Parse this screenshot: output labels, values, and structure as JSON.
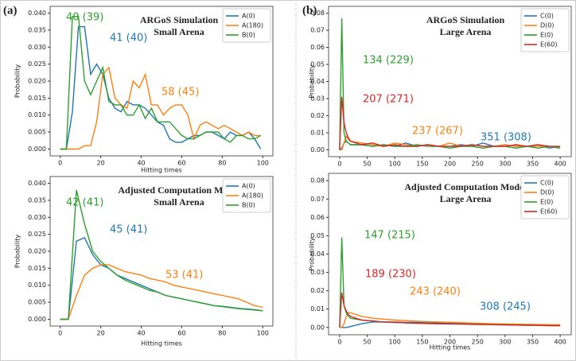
{
  "panel_labels": [
    "(a)",
    "(b)"
  ],
  "chart_data": [
    {
      "type": "line",
      "title": "ARGoS Simulation",
      "subtitle": "Small Arena",
      "xlabel": "Hitting times",
      "ylabel": "Probability",
      "x": [
        0,
        3,
        6,
        9,
        12,
        15,
        18,
        21,
        24,
        27,
        30,
        33,
        36,
        39,
        42,
        45,
        48,
        51,
        54,
        57,
        60,
        63,
        66,
        69,
        72,
        75,
        78,
        81,
        84,
        87,
        90,
        93,
        96,
        99
      ],
      "series": [
        {
          "name": "A(0)",
          "color": "#1f77b4",
          "values": [
            0,
            0,
            0.011,
            0.036,
            0.036,
            0.022,
            0.025,
            0.022,
            0.015,
            0.012,
            0.011,
            0.014,
            0.013,
            0.013,
            0.012,
            0.01,
            0.008,
            0.007,
            0.003,
            0.002,
            0.002,
            0.003,
            0.004,
            0.004,
            0.005,
            0.005,
            0.004,
            0.003,
            0.005,
            0.004,
            0.004,
            0.005,
            0.003,
            0
          ]
        },
        {
          "name": "A(180)",
          "color": "#ff7f0e",
          "values": [
            0,
            0,
            0,
            0,
            0.001,
            0.001,
            0.008,
            0.022,
            0.024,
            0.015,
            0.013,
            0.012,
            0.02,
            0.018,
            0.022,
            0.013,
            0.013,
            0.01,
            0.012,
            0.013,
            0.013,
            0.01,
            0.003,
            0.007,
            0.008,
            0.007,
            0.006,
            0.007,
            0.006,
            0.005,
            0.004,
            0.005,
            0.004,
            0.004
          ]
        },
        {
          "name": "B(0)",
          "color": "#2ca02c",
          "values": [
            0,
            0,
            0.039,
            0.039,
            0.02,
            0.016,
            0.02,
            0.024,
            0.014,
            0.013,
            0.013,
            0.01,
            0.01,
            0.013,
            0.009,
            0.012,
            0.008,
            0.008,
            0.008,
            0.006,
            0.004,
            0.003,
            0.003,
            0.004,
            0.005,
            0.005,
            0.005,
            0.003,
            0.002,
            0.004,
            0.004,
            0.003,
            0.003,
            0.004
          ]
        }
      ],
      "annotations": [
        {
          "text": "40 (39)",
          "color": "#2ca02c"
        },
        {
          "text": "41 (40)",
          "color": "#1f77b4"
        },
        {
          "text": "58 (45)",
          "color": "#ff7f0e"
        }
      ],
      "xlim": [
        -5,
        105
      ],
      "ylim": [
        -0.002,
        0.042
      ],
      "xticks": [
        0,
        20,
        40,
        60,
        80,
        100
      ],
      "yticks": [
        {
          "value": 0,
          "label": "0.000"
        },
        {
          "value": 0.005,
          "label": "0.005"
        },
        {
          "value": 0.01,
          "label": "0.010"
        },
        {
          "value": 0.015,
          "label": "0.015"
        },
        {
          "value": 0.02,
          "label": "0.020"
        },
        {
          "value": 0.025,
          "label": "0.025"
        },
        {
          "value": 0.03,
          "label": "0.030"
        },
        {
          "value": 0.035,
          "label": "0.035"
        },
        {
          "value": 0.04,
          "label": "0.040"
        }
      ],
      "legend": "upper right"
    },
    {
      "type": "line",
      "title": "Adjusted Computation Model",
      "subtitle": "Small Arena",
      "xlabel": "Hitting times",
      "ylabel": "Probability",
      "x": [
        0,
        4,
        8,
        12,
        16,
        20,
        24,
        28,
        32,
        36,
        40,
        44,
        48,
        52,
        56,
        60,
        64,
        68,
        72,
        76,
        80,
        84,
        88,
        92,
        96,
        100
      ],
      "series": [
        {
          "name": "A(0)",
          "color": "#1f77b4",
          "values": [
            0,
            0,
            0.023,
            0.024,
            0.019,
            0.016,
            0.015,
            0.013,
            0.012,
            0.011,
            0.01,
            0.009,
            0.008,
            0.007,
            0.0065,
            0.006,
            0.0055,
            0.005,
            0.0045,
            0.004,
            0.0038,
            0.0035,
            0.0032,
            0.003,
            0.0028,
            0.0025
          ]
        },
        {
          "name": "A(180)",
          "color": "#ff7f0e",
          "values": [
            0,
            0,
            0.007,
            0.013,
            0.015,
            0.016,
            0.016,
            0.015,
            0.014,
            0.0135,
            0.013,
            0.012,
            0.0115,
            0.011,
            0.01,
            0.0095,
            0.009,
            0.0085,
            0.008,
            0.0075,
            0.007,
            0.0065,
            0.006,
            0.005,
            0.004,
            0.0035
          ]
        },
        {
          "name": "B(0)",
          "color": "#2ca02c",
          "values": [
            0,
            0,
            0.038,
            0.028,
            0.02,
            0.017,
            0.015,
            0.013,
            0.0115,
            0.0105,
            0.0095,
            0.0085,
            0.008,
            0.007,
            0.0065,
            0.006,
            0.0055,
            0.005,
            0.0045,
            0.004,
            0.0037,
            0.0034,
            0.0031,
            0.0029,
            0.0027,
            0.0025
          ]
        }
      ],
      "annotations": [
        {
          "text": "42 (41)",
          "color": "#2ca02c"
        },
        {
          "text": "45 (41)",
          "color": "#1f77b4"
        },
        {
          "text": "53 (41)",
          "color": "#ff7f0e"
        }
      ],
      "xlim": [
        -5,
        105
      ],
      "ylim": [
        -0.002,
        0.042
      ],
      "xticks": [
        0,
        20,
        40,
        60,
        80,
        100
      ],
      "yticks": [
        {
          "value": 0,
          "label": "0.000"
        },
        {
          "value": 0.005,
          "label": "0.005"
        },
        {
          "value": 0.01,
          "label": "0.010"
        },
        {
          "value": 0.015,
          "label": "0.015"
        },
        {
          "value": 0.02,
          "label": "0.020"
        },
        {
          "value": 0.025,
          "label": "0.025"
        },
        {
          "value": 0.03,
          "label": "0.030"
        },
        {
          "value": 0.035,
          "label": "0.035"
        },
        {
          "value": 0.04,
          "label": "0.040"
        }
      ],
      "legend": "upper right"
    },
    {
      "type": "line",
      "title": "ARGoS Simulation",
      "subtitle": "Large Arena",
      "ylabel": "Probability",
      "x": [
        0,
        4,
        8,
        12,
        16,
        20,
        40,
        60,
        80,
        100,
        120,
        140,
        160,
        180,
        200,
        220,
        240,
        260,
        280,
        300,
        320,
        340,
        360,
        380,
        400
      ],
      "series": [
        {
          "name": "C(0)",
          "color": "#1f77b4",
          "values": [
            0,
            0.001,
            0.004,
            0.005,
            0.004,
            0.003,
            0.003,
            0.002,
            0.003,
            0.002,
            0.004,
            0.002,
            0.003,
            0.002,
            0.002,
            0.003,
            0.002,
            0.004,
            0.002,
            0.003,
            0.002,
            0.002,
            0.003,
            0.001,
            0.002
          ]
        },
        {
          "name": "D(0)",
          "color": "#ff7f0e",
          "values": [
            0,
            0,
            0.004,
            0.008,
            0.006,
            0.005,
            0.004,
            0.003,
            0.002,
            0.004,
            0.003,
            0.002,
            0.003,
            0.002,
            0.004,
            0.002,
            0.003,
            0.002,
            0.002,
            0.003,
            0.002,
            0.002,
            0.002,
            0.002,
            0.001
          ]
        },
        {
          "name": "E(0)",
          "color": "#2ca02c",
          "values": [
            0,
            0.077,
            0.01,
            0.005,
            0.004,
            0.003,
            0.003,
            0.002,
            0.003,
            0.002,
            0.002,
            0.003,
            0.002,
            0.002,
            0.001,
            0.002,
            0.002,
            0.001,
            0.002,
            0.002,
            0.001,
            0.002,
            0.001,
            0.002,
            0.001
          ]
        },
        {
          "name": "E(60)",
          "color": "#d62728",
          "values": [
            0,
            0.031,
            0.016,
            0.01,
            0.007,
            0.005,
            0.003,
            0.004,
            0.002,
            0.003,
            0.002,
            0.002,
            0.003,
            0.002,
            0.002,
            0.002,
            0.003,
            0.002,
            0.002,
            0.002,
            0.003,
            0.002,
            0.003,
            0.002,
            0.002
          ]
        }
      ],
      "annotations": [
        {
          "text": "134 (229)",
          "color": "#2ca02c"
        },
        {
          "text": "207 (271)",
          "color": "#d62728"
        },
        {
          "text": "237 (267)",
          "color": "#ff7f0e"
        },
        {
          "text": "351 (308)",
          "color": "#1f77b4"
        }
      ],
      "xlim": [
        -20,
        420
      ],
      "ylim": [
        -0.004,
        0.084
      ],
      "xticks": [
        0,
        50,
        100,
        150,
        200,
        250,
        300,
        350,
        400
      ],
      "yticks": [
        {
          "value": 0,
          "label": "0.00"
        },
        {
          "value": 0.01,
          "label": "0.01"
        },
        {
          "value": 0.02,
          "label": "0.02"
        },
        {
          "value": 0.03,
          "label": "0.03"
        },
        {
          "value": 0.04,
          "label": "0.04"
        },
        {
          "value": 0.05,
          "label": "0.05"
        },
        {
          "value": 0.06,
          "label": "0.06"
        },
        {
          "value": 0.07,
          "label": "0.07"
        },
        {
          "value": 0.08,
          "label": "0.08"
        }
      ],
      "legend": "upper right"
    },
    {
      "type": "line",
      "title": "Adjusted Computation Model",
      "subtitle": "Large Arena",
      "xlabel": "Hitting times",
      "ylabel": "Probability",
      "x": [
        0,
        4,
        8,
        12,
        16,
        20,
        40,
        60,
        80,
        100,
        120,
        140,
        160,
        180,
        200,
        220,
        240,
        260,
        280,
        300,
        320,
        340,
        360,
        380,
        400
      ],
      "series": [
        {
          "name": "C(0)",
          "color": "#1f77b4",
          "values": [
            0,
            0,
            0,
            0,
            0.0002,
            0.0005,
            0.002,
            0.003,
            0.003,
            0.003,
            0.0028,
            0.0027,
            0.0025,
            0.0024,
            0.0022,
            0.0021,
            0.002,
            0.0019,
            0.0018,
            0.0017,
            0.0016,
            0.0015,
            0.0014,
            0.0013,
            0.0012
          ]
        },
        {
          "name": "D(0)",
          "color": "#ff7f0e",
          "values": [
            0,
            0,
            0.002,
            0.006,
            0.008,
            0.008,
            0.006,
            0.005,
            0.0045,
            0.004,
            0.0037,
            0.0034,
            0.0032,
            0.003,
            0.0028,
            0.0026,
            0.0024,
            0.0022,
            0.002,
            0.0019,
            0.0018,
            0.0017,
            0.0016,
            0.0015,
            0.0014
          ]
        },
        {
          "name": "E(0)",
          "color": "#2ca02c",
          "values": [
            0,
            0.049,
            0.012,
            0.008,
            0.006,
            0.005,
            0.004,
            0.0035,
            0.003,
            0.0027,
            0.0025,
            0.0023,
            0.0021,
            0.002,
            0.0019,
            0.0018,
            0.0017,
            0.0016,
            0.0015,
            0.0014,
            0.0013,
            0.0012,
            0.0011,
            0.001,
            0.001
          ]
        },
        {
          "name": "E(60)",
          "color": "#d62728",
          "values": [
            0,
            0.019,
            0.012,
            0.009,
            0.007,
            0.006,
            0.004,
            0.0035,
            0.003,
            0.0027,
            0.0025,
            0.0023,
            0.0021,
            0.002,
            0.0019,
            0.0018,
            0.0017,
            0.0016,
            0.0015,
            0.0014,
            0.0013,
            0.0012,
            0.0011,
            0.001,
            0.001
          ]
        }
      ],
      "annotations": [
        {
          "text": "147 (215)",
          "color": "#2ca02c"
        },
        {
          "text": "189 (230)",
          "color": "#d62728"
        },
        {
          "text": "243 (240)",
          "color": "#ff7f0e"
        },
        {
          "text": "308 (245)",
          "color": "#1f77b4"
        }
      ],
      "xlim": [
        -20,
        420
      ],
      "ylim": [
        -0.004,
        0.084
      ],
      "xticks": [
        0,
        50,
        100,
        150,
        200,
        250,
        300,
        350,
        400
      ],
      "yticks": [
        {
          "value": 0,
          "label": "0.00"
        },
        {
          "value": 0.01,
          "label": "0.01"
        },
        {
          "value": 0.02,
          "label": "0.02"
        },
        {
          "value": 0.03,
          "label": "0.03"
        },
        {
          "value": 0.04,
          "label": "0.04"
        },
        {
          "value": 0.05,
          "label": "0.05"
        },
        {
          "value": 0.06,
          "label": "0.06"
        },
        {
          "value": 0.07,
          "label": "0.07"
        },
        {
          "value": 0.08,
          "label": "0.08"
        }
      ],
      "legend": "upper right"
    }
  ]
}
